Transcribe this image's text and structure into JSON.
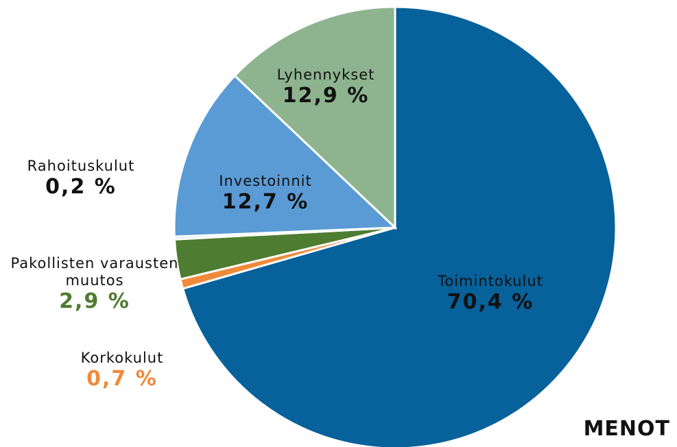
{
  "chart_data": {
    "type": "pie",
    "title": "MENOT",
    "categories": [
      "Toimintokulut",
      "Korkokulut",
      "Pakollisten varausten muutos",
      "Rahoituskulut",
      "Investoinnit",
      "Lyhennykset"
    ],
    "values": [
      70.4,
      0.7,
      2.9,
      0.2,
      12.7,
      12.9
    ],
    "value_labels": [
      "70,4 %",
      "0,7 %",
      "2,9 %",
      "0,2 %",
      "12,7 %",
      "12,9 %"
    ],
    "colors": [
      "#07619a",
      "#f08a3b",
      "#4e7c30",
      "#cfdde9",
      "#5b9bd5",
      "#8db48e"
    ],
    "label_colors": [
      "#111111",
      "#f08a3b",
      "#4e7c30",
      "#111111",
      "#111111",
      "#111111"
    ]
  }
}
